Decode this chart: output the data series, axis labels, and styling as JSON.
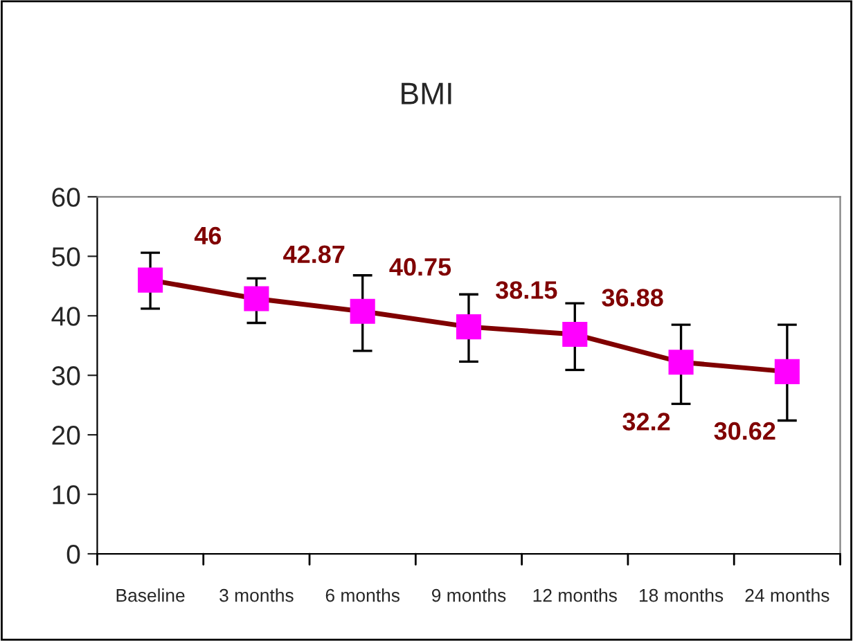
{
  "chart_data": {
    "type": "line",
    "title": "BMI",
    "categories": [
      "Baseline",
      "3 months",
      "6 months",
      "9 months",
      "12 months",
      "18 months",
      "24 months"
    ],
    "series": [
      {
        "color": "#800000",
        "values": [
          46,
          42.87,
          40.75,
          38.15,
          36.88,
          32.2,
          30.62
        ],
        "errors": [
          [
            41.2,
            50.6
          ],
          [
            38.8,
            46.3
          ],
          [
            34.1,
            46.8
          ],
          [
            32.3,
            43.6
          ],
          [
            30.9,
            42.1
          ],
          [
            25.2,
            38.5
          ],
          [
            22.4,
            38.5
          ]
        ]
      }
    ],
    "marker": "square",
    "line_style": "solid",
    "data_labels": true,
    "ylim": [
      0,
      60
    ],
    "yticks": [
      0,
      10,
      20,
      30,
      40,
      50,
      60
    ],
    "grid": false,
    "legend": false
  }
}
